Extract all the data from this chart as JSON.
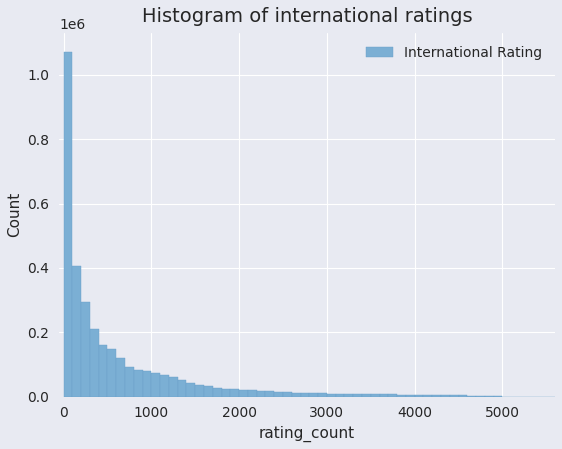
{
  "title": "Histogram of international ratings",
  "xlabel": "rating_count",
  "ylabel": "Count",
  "legend_label": "International Rating",
  "bar_color": "#7bafd4",
  "bar_edgecolor": "#6a9fc8",
  "background_color": "#e8eaf2",
  "axes_background": "#e8eaf2",
  "grid_color": "#ffffff",
  "xlim": [
    -50,
    5600
  ],
  "ylim": [
    0,
    1130000
  ],
  "bin_width": 100,
  "bar_heights": [
    1070000,
    405000,
    295000,
    210000,
    160000,
    148000,
    120000,
    92000,
    83000,
    78000,
    74000,
    68000,
    60000,
    51000,
    42000,
    36000,
    32000,
    28000,
    25000,
    22000,
    20000,
    19000,
    17000,
    16000,
    14500,
    13500,
    12500,
    11500,
    10500,
    10000,
    9500,
    9000,
    8600,
    8200,
    7800,
    7400,
    7000,
    6600,
    6200,
    5800,
    5400,
    5000,
    4600,
    4300,
    3900,
    3500,
    3100,
    2800,
    2500,
    2200,
    0,
    0,
    0,
    0,
    0,
    0,
    0,
    0,
    0,
    0,
    0,
    0,
    0,
    0,
    0,
    0,
    0,
    0,
    0,
    0,
    0,
    0,
    0,
    0,
    0,
    0,
    0,
    0,
    0,
    0,
    0,
    0,
    0,
    0,
    0,
    0,
    0,
    0,
    0,
    0,
    0,
    0,
    0,
    0,
    0,
    0,
    0,
    0,
    0,
    0,
    0,
    0,
    0,
    0,
    0,
    0,
    0,
    0,
    0,
    0,
    0,
    0,
    0,
    0,
    0,
    0,
    0,
    0,
    0,
    0,
    0,
    0,
    0,
    0,
    0,
    0,
    0,
    0,
    0,
    0,
    0,
    0,
    0,
    0,
    0,
    0,
    0,
    0,
    0,
    0,
    0,
    0,
    0,
    0,
    0,
    0,
    0,
    0,
    0,
    0,
    0,
    0,
    0,
    0,
    0,
    0,
    0,
    0,
    0,
    0,
    0,
    0,
    0,
    0,
    0,
    0,
    0,
    0,
    0,
    0,
    0,
    0,
    0,
    0,
    0,
    0,
    0,
    0,
    0,
    0,
    0,
    0,
    0,
    0,
    0,
    0,
    0,
    0,
    0,
    0,
    0,
    0,
    0,
    0,
    0,
    0,
    0,
    0,
    0,
    0,
    0,
    0,
    0,
    0,
    0,
    0,
    0,
    0,
    0,
    0,
    0,
    0,
    0,
    0,
    0,
    0,
    0,
    0,
    0,
    0,
    0,
    0,
    0,
    0,
    0,
    0,
    0,
    0,
    0,
    0,
    0,
    0,
    0,
    0,
    0,
    0,
    0,
    0,
    0,
    0,
    0,
    0,
    0,
    0,
    0,
    0,
    0,
    0,
    0,
    0,
    0,
    0,
    0,
    0,
    0,
    0,
    0,
    0,
    0,
    0,
    0,
    0,
    0,
    0,
    0,
    0,
    0,
    0,
    0,
    0,
    0,
    0,
    0,
    0,
    0,
    0,
    0,
    0,
    0,
    0,
    0,
    0,
    0,
    0,
    0,
    0,
    0,
    0,
    0,
    0,
    0,
    0,
    0,
    0,
    0,
    0,
    0,
    0,
    0,
    0,
    0,
    0,
    0,
    0,
    0,
    0,
    0,
    0,
    0,
    0,
    0,
    0,
    0,
    0,
    0,
    0,
    0,
    0,
    0,
    0,
    0,
    0,
    0,
    0,
    0,
    0,
    0,
    0,
    0,
    0,
    0,
    0,
    0,
    0,
    0,
    0,
    0,
    0,
    0,
    0,
    5000,
    4500,
    4000,
    0,
    0,
    0,
    0,
    0,
    0,
    0,
    0,
    0,
    0,
    0,
    0,
    0,
    0,
    0,
    0,
    0,
    0,
    0,
    0,
    0,
    0,
    0,
    0,
    0,
    0,
    0,
    0,
    0,
    0,
    0,
    0,
    0,
    0,
    0,
    0,
    0,
    0,
    0,
    0,
    0,
    0,
    0,
    0,
    0,
    0,
    0,
    0,
    0,
    0,
    0,
    0,
    0,
    7000,
    0,
    0,
    0,
    0,
    0,
    0,
    0,
    0,
    0,
    0,
    0,
    0,
    0,
    0,
    0,
    0,
    0,
    0,
    0,
    0,
    0,
    0,
    0,
    0,
    0,
    0,
    0,
    0,
    0,
    0,
    0,
    0,
    0,
    0,
    0,
    0,
    0,
    0,
    0,
    0,
    0,
    0,
    0,
    0,
    0,
    0,
    0,
    0,
    0,
    0,
    0,
    0,
    0,
    0,
    0,
    0,
    0,
    0,
    0
  ],
  "title_fontsize": 14,
  "label_fontsize": 11,
  "tick_fontsize": 10
}
